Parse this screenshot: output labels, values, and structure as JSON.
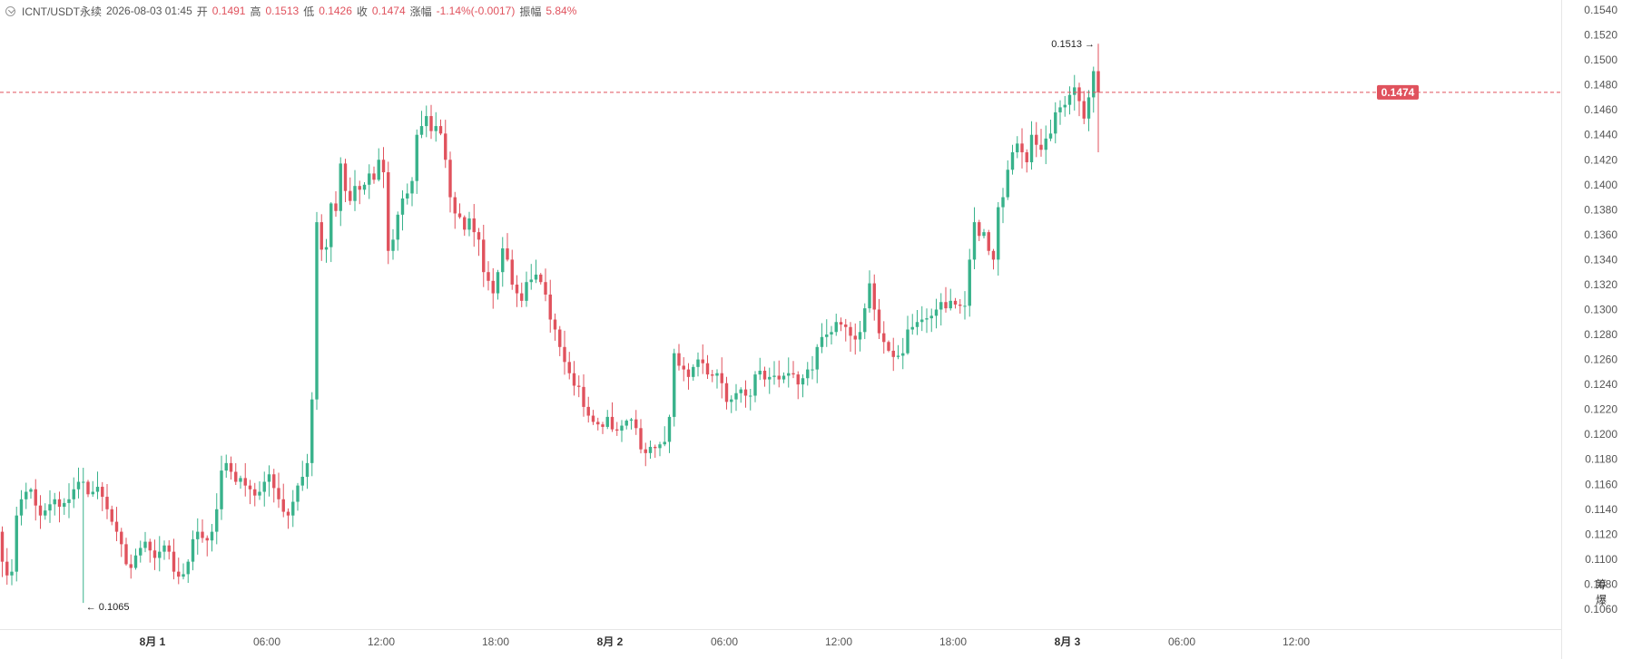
{
  "header": {
    "symbol": "ICNT/USDT永续",
    "datetime": "2026-08-03 01:45",
    "open_label": "开",
    "open": "0.1491",
    "high_label": "高",
    "high": "0.1513",
    "low_label": "低",
    "low": "0.1426",
    "close_label": "收",
    "close": "0.1474",
    "change_label": "涨幅",
    "change": "-1.14%(-0.0017)",
    "amplitude_label": "振幅",
    "amplitude": "5.84%"
  },
  "corner_labels": "筹 爆",
  "colors": {
    "up": "#38b28b",
    "down": "#e0525d",
    "last_price": "#e0525d",
    "axis_text": "#555555"
  },
  "chart_data": {
    "type": "candlestick",
    "interval_minutes": 15,
    "x_ticks": [
      "8月 1",
      "06:00",
      "12:00",
      "18:00",
      "8月 2",
      "06:00",
      "12:00",
      "18:00",
      "8月 3",
      "06:00",
      "12:00"
    ],
    "y_ticks": [
      "0.1060",
      "0.1080",
      "0.1100",
      "0.1120",
      "0.1140",
      "0.1160",
      "0.1180",
      "0.1200",
      "0.1220",
      "0.1240",
      "0.1260",
      "0.1280",
      "0.1300",
      "0.1320",
      "0.1340",
      "0.1360",
      "0.1380",
      "0.1400",
      "0.1420",
      "0.1440",
      "0.1460",
      "0.1480",
      "0.1500",
      "0.1520",
      "0.1540"
    ],
    "ylim": [
      0.1044,
      0.1548
    ],
    "last_price": "0.1474",
    "annotations": [
      {
        "text": "0.1513",
        "value": 0.1513,
        "arrow": "→"
      },
      {
        "text": "0.1065",
        "value": 0.1065,
        "arrow": "←"
      }
    ],
    "closes": [
      0.116,
      0.1148,
      0.113,
      0.1122,
      0.1098,
      0.1087,
      0.109,
      0.1135,
      0.1148,
      0.1154,
      0.1156,
      0.1143,
      0.1135,
      0.1139,
      0.1144,
      0.1148,
      0.1142,
      0.1145,
      0.1148,
      0.1156,
      0.1162,
      0.1162,
      0.1152,
      0.1154,
      0.1158,
      0.115,
      0.114,
      0.113,
      0.1122,
      0.1112,
      0.1096,
      0.1093,
      0.1103,
      0.1109,
      0.1114,
      0.1107,
      0.1101,
      0.1106,
      0.1111,
      0.1106,
      0.109,
      0.1086,
      0.1088,
      0.1098,
      0.1116,
      0.1122,
      0.1117,
      0.1115,
      0.1122,
      0.114,
      0.1171,
      0.1177,
      0.117,
      0.1162,
      0.1165,
      0.1159,
      0.1156,
      0.1151,
      0.1154,
      0.1162,
      0.1168,
      0.1157,
      0.1148,
      0.1138,
      0.1135,
      0.1146,
      0.1159,
      0.1166,
      0.1177,
      0.1228,
      0.137,
      0.1348,
      0.135,
      0.1385,
      0.1379,
      0.1417,
      0.1395,
      0.1387,
      0.1399,
      0.1396,
      0.14,
      0.1409,
      0.1404,
      0.142,
      0.141,
      0.1347,
      0.1356,
      0.1376,
      0.1389,
      0.1393,
      0.1403,
      0.144,
      0.1447,
      0.1455,
      0.1443,
      0.1447,
      0.1441,
      0.142,
      0.139,
      0.1377,
      0.1374,
      0.1364,
      0.1373,
      0.1362,
      0.1356,
      0.133,
      0.1323,
      0.1313,
      0.133,
      0.1349,
      0.134,
      0.132,
      0.1313,
      0.1307,
      0.1322,
      0.1324,
      0.1328,
      0.1322,
      0.1312,
      0.1292,
      0.1284,
      0.127,
      0.1258,
      0.1249,
      0.1239,
      0.1238,
      0.1222,
      0.1215,
      0.121,
      0.1208,
      0.1206,
      0.1214,
      0.1204,
      0.1203,
      0.1207,
      0.1211,
      0.1212,
      0.1205,
      0.1188,
      0.1185,
      0.119,
      0.1189,
      0.1192,
      0.1194,
      0.1214,
      0.1265,
      0.1255,
      0.1252,
      0.1246,
      0.1254,
      0.126,
      0.1257,
      0.1248,
      0.1247,
      0.1249,
      0.1241,
      0.1226,
      0.1228,
      0.1233,
      0.1236,
      0.1231,
      0.1231,
      0.1248,
      0.1251,
      0.1244,
      0.1246,
      0.1247,
      0.1244,
      0.1247,
      0.1249,
      0.1248,
      0.124,
      0.1245,
      0.1252,
      0.1252,
      0.127,
      0.1278,
      0.128,
      0.1282,
      0.129,
      0.1288,
      0.1286,
      0.1279,
      0.1276,
      0.1282,
      0.1301,
      0.1321,
      0.13,
      0.1281,
      0.1274,
      0.1267,
      0.1262,
      0.1263,
      0.1265,
      0.1284,
      0.1286,
      0.129,
      0.1292,
      0.1293,
      0.1295,
      0.13,
      0.1306,
      0.1301,
      0.1307,
      0.1304,
      0.1303,
      0.1303,
      0.134,
      0.137,
      0.1359,
      0.1362,
      0.1347,
      0.134,
      0.1382,
      0.139,
      0.1412,
      0.1426,
      0.1433,
      0.1426,
      0.1418,
      0.144,
      0.1432,
      0.1428,
      0.1437,
      0.1441,
      0.1458,
      0.1462,
      0.1464,
      0.1472,
      0.1478,
      0.1467,
      0.1453,
      0.147,
      0.1491,
      0.1474
    ]
  }
}
